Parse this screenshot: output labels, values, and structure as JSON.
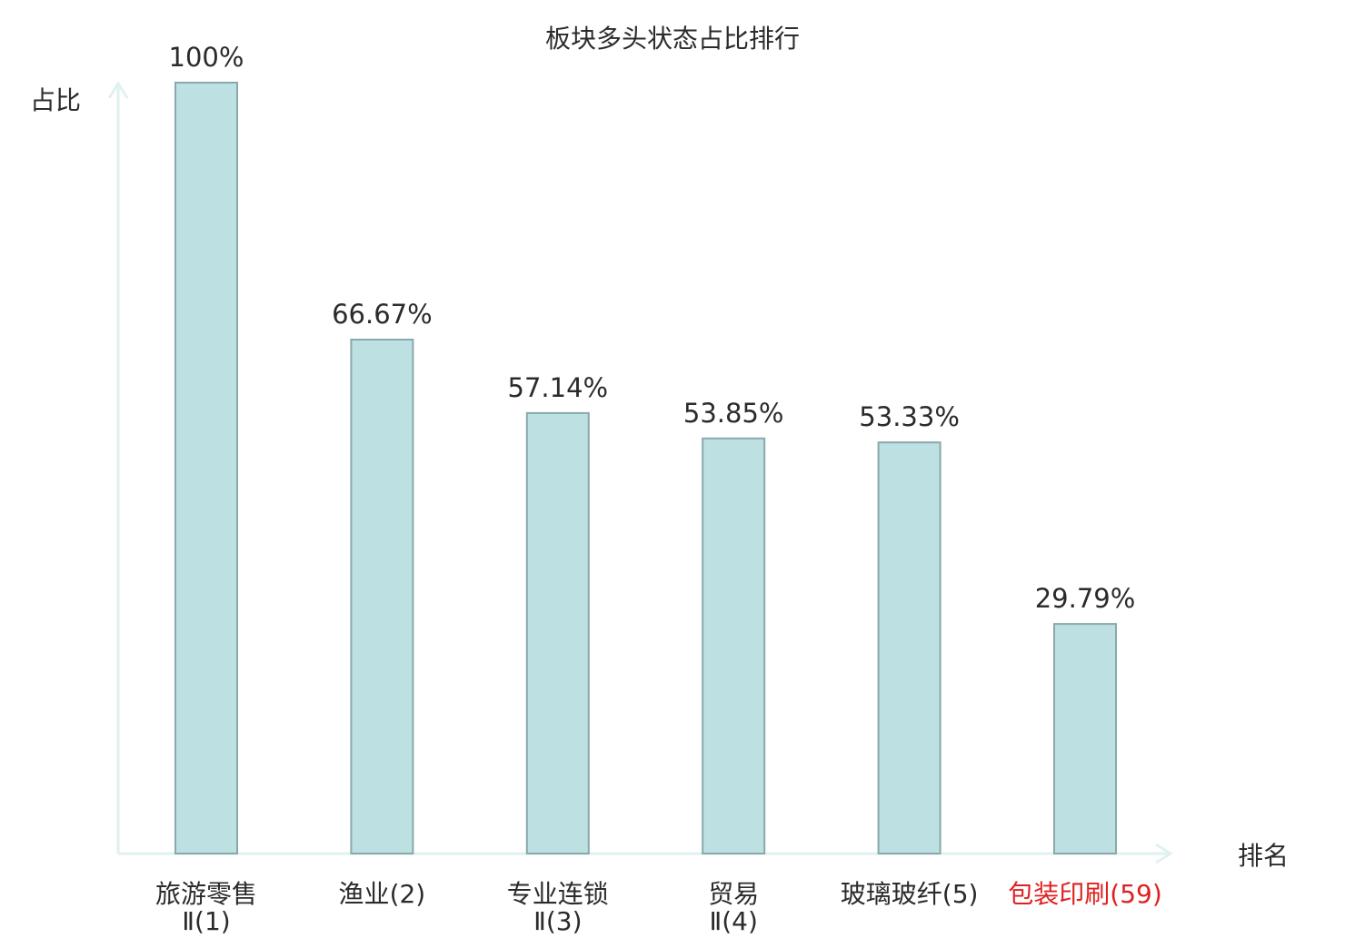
{
  "chart_data": {
    "type": "bar",
    "title": "板块多头状态占比排行",
    "ylabel": "占比",
    "xlabel": "排名",
    "ylim": [
      0,
      100
    ],
    "grid": false,
    "legend": "none",
    "categories": [
      {
        "name": "旅游零售",
        "rank": "Ⅱ(1)"
      },
      {
        "name": "渔业",
        "rank": "(2)"
      },
      {
        "name": "专业连锁",
        "rank": "Ⅱ(3)"
      },
      {
        "name": "贸易",
        "rank": "Ⅱ(4)"
      },
      {
        "name": "玻璃玻纤",
        "rank": "(5)"
      },
      {
        "name": "包装印刷",
        "rank": "(59)"
      }
    ],
    "values": [
      100,
      66.67,
      57.14,
      53.85,
      53.33,
      29.79
    ],
    "value_labels": [
      "100%",
      "66.67%",
      "57.14%",
      "53.85%",
      "53.33%",
      "29.79%"
    ],
    "highlight_index": 5,
    "colors": {
      "bar_fill": "#bde0e3",
      "bar_stroke": "#8aa8ab",
      "axis": "#e0f2ef",
      "text": "#2b2b2b",
      "highlight": "#e02020"
    }
  }
}
